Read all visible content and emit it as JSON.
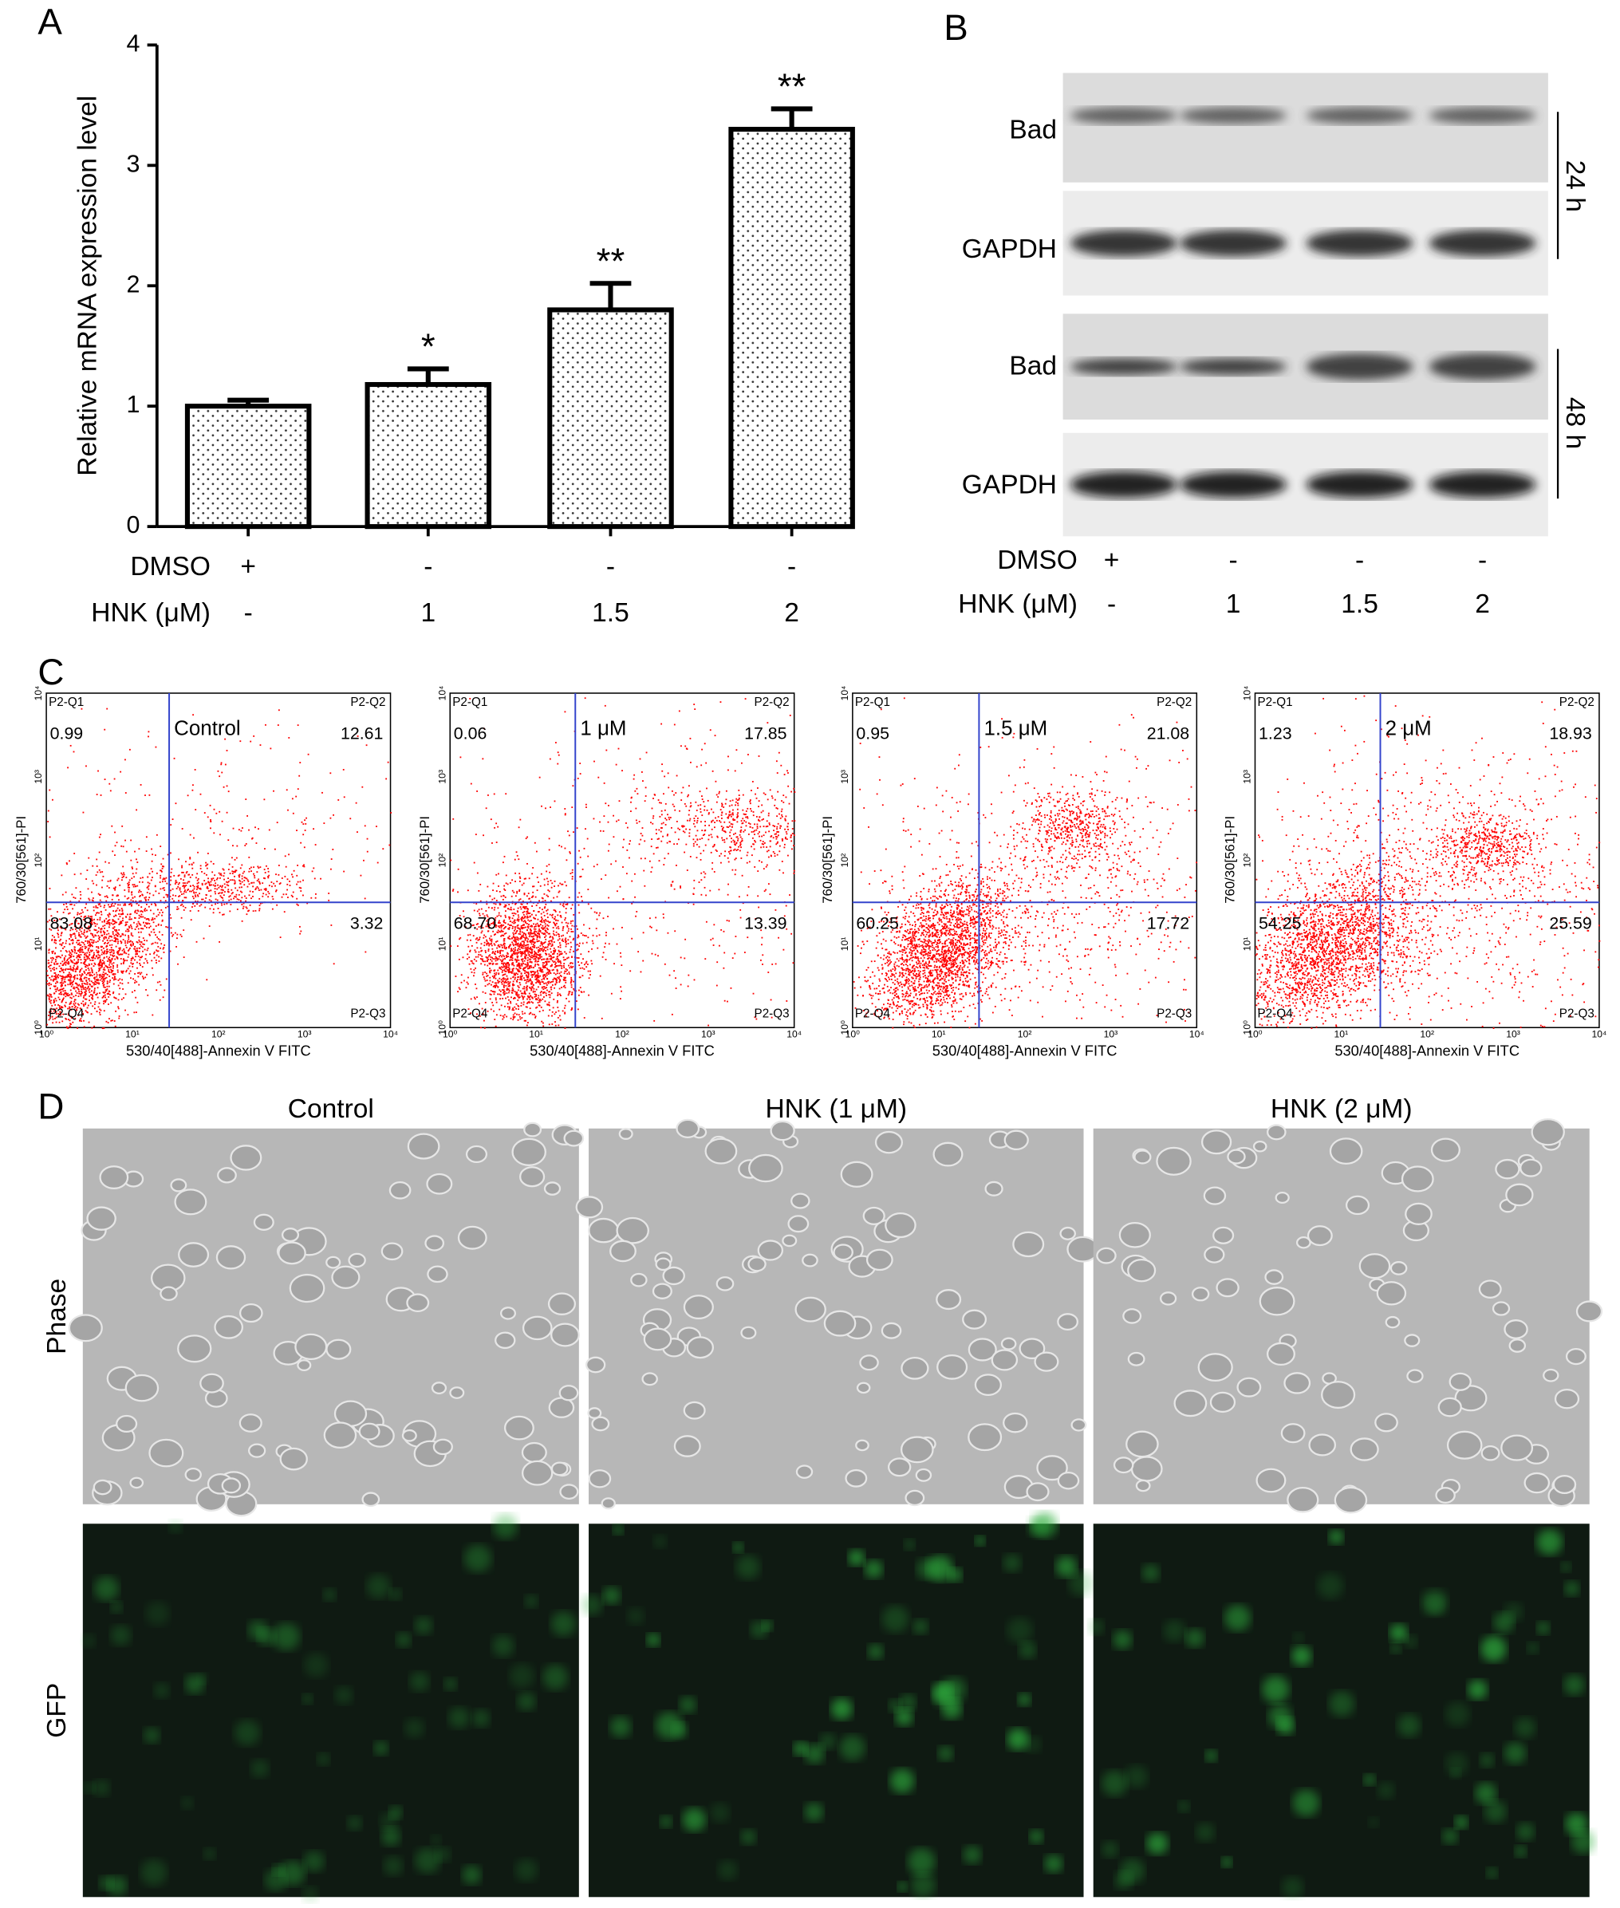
{
  "panel_labels": [
    "A",
    "B",
    "C",
    "D"
  ],
  "chart_data": {
    "type": "bar",
    "y_label": "Relative mRNA expression level",
    "values": [
      1.0,
      1.18,
      1.8,
      3.3
    ],
    "errors": [
      0.05,
      0.13,
      0.22,
      0.17
    ],
    "annotations": [
      null,
      "*",
      "**",
      "**"
    ],
    "rows": [
      {
        "name": "DMSO",
        "values": [
          "+",
          "-",
          "-",
          "-"
        ]
      },
      {
        "name": "HNK (μM)",
        "values": [
          "-",
          "1",
          "1.5",
          "2"
        ]
      }
    ],
    "ylim": [
      0,
      4
    ],
    "yticks": [
      0,
      1,
      2,
      3,
      4
    ],
    "color": "#000000"
  },
  "blot": {
    "bands": [
      "Bad",
      "GAPDH",
      "Bad",
      "GAPDH"
    ],
    "times": [
      "24 h",
      "48 h"
    ],
    "rows": [
      {
        "name": "DMSO",
        "values": [
          "+",
          "-",
          "-",
          "-"
        ]
      },
      {
        "name": "HNK (μM)",
        "values": [
          "-",
          "1",
          "1.5",
          "2"
        ]
      }
    ]
  },
  "flow": {
    "x_label": "530/40[488]-Annexin V FITC",
    "y_label": "760/30[561]-PI",
    "ticks": [
      "10⁰",
      "10¹",
      "10²",
      "10³",
      "10⁴"
    ],
    "plots": [
      {
        "title": "Control",
        "gates": [
          "P2-Q1",
          "P2-Q2",
          "P2-Q3",
          "P2-Q4"
        ],
        "percents": [
          "0.99",
          "12.61",
          "3.32",
          "83.08"
        ]
      },
      {
        "title": "1 μM",
        "gates": [
          "P2-Q1",
          "P2-Q2",
          "P2-Q3",
          "P2-Q4"
        ],
        "percents": [
          "0.06",
          "17.85",
          "13.39",
          "68.70"
        ]
      },
      {
        "title": "1.5 μM",
        "gates": [
          "P2-Q1",
          "P2-Q2",
          "P2-Q3",
          "P2-Q4"
        ],
        "percents": [
          "0.95",
          "21.08",
          "17.72",
          "60.25"
        ]
      },
      {
        "title": "2 μM",
        "gates": [
          "P2-Q1",
          "P2-Q2",
          "P2-Q3",
          "P2-Q4"
        ],
        "percents": [
          "1.23",
          "18.93",
          "25.59",
          "54.25"
        ]
      }
    ]
  },
  "micro": {
    "columns": [
      "Control",
      "HNK (1 μM)",
      "HNK (2 μM)"
    ],
    "rows": [
      "Phase",
      "GFP"
    ]
  }
}
